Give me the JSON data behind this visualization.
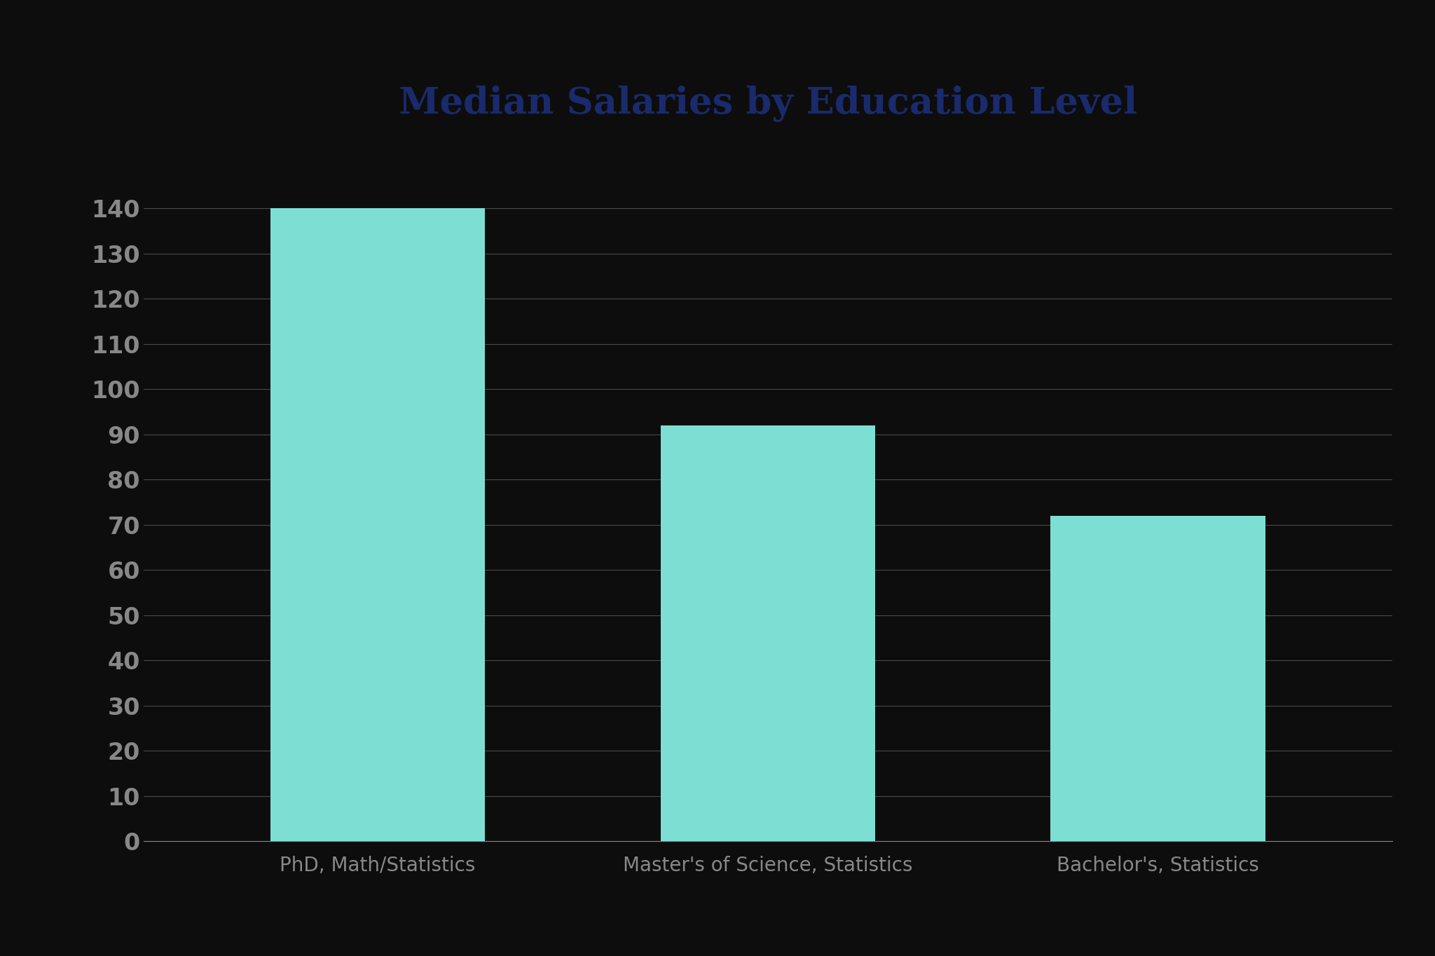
{
  "title": "Median Salaries by Education Level",
  "categories": [
    "PhD, Math/Statistics",
    "Master's of Science, Statistics",
    "Bachelor's, Statistics"
  ],
  "values": [
    140,
    92,
    72
  ],
  "bar_color": "#7DDFD4",
  "background_color": "#0d0d0d",
  "plot_background_color": "#0d0d0d",
  "title_color": "#1a2a6c",
  "tick_label_color": "#888888",
  "xlabel_color": "#888888",
  "grid_color": "#ffffff",
  "grid_alpha": 0.25,
  "axis_color": "#888888",
  "ylim": [
    0,
    148
  ],
  "yticks": [
    0,
    10,
    20,
    30,
    40,
    50,
    60,
    70,
    80,
    90,
    100,
    110,
    120,
    130,
    140
  ],
  "title_fontsize": 38,
  "tick_fontsize": 24,
  "xlabel_fontsize": 20,
  "bar_width": 0.55
}
